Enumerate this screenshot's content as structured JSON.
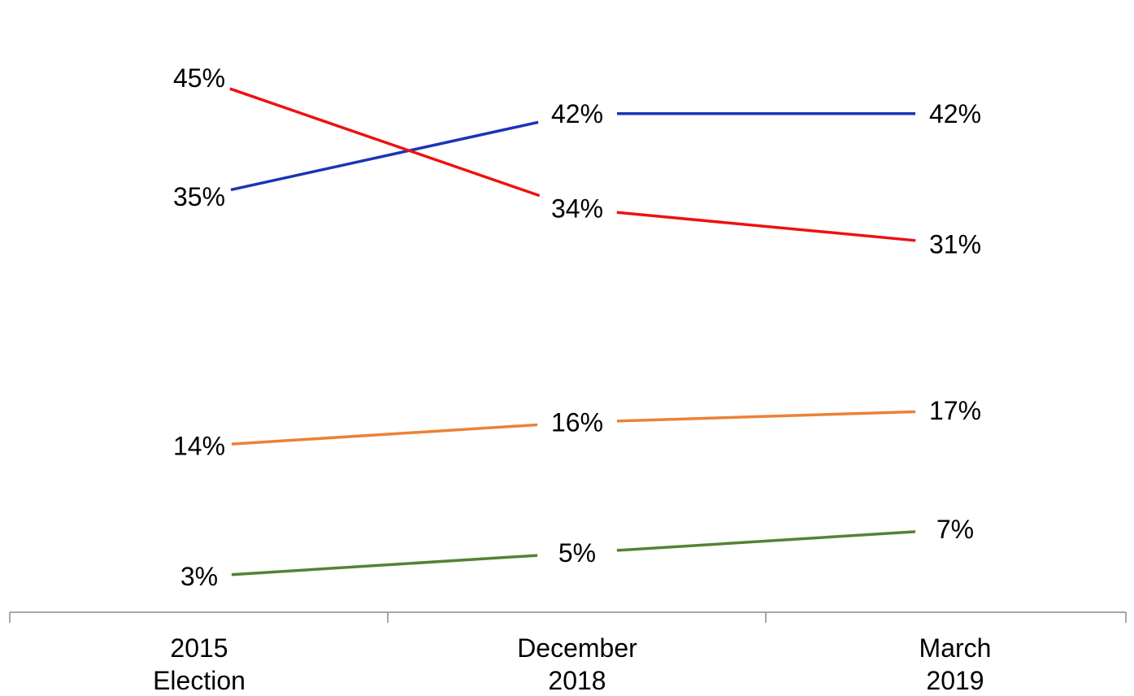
{
  "chart_data": {
    "type": "line",
    "categories": [
      [
        "2015",
        "Election"
      ],
      [
        "December",
        "2018"
      ],
      [
        "March",
        "2019"
      ]
    ],
    "series": [
      {
        "values": [
          35,
          42,
          42
        ],
        "labels": [
          "35%",
          "42%",
          "42%"
        ],
        "color": "#1a35b4"
      },
      {
        "values": [
          45,
          34,
          31
        ],
        "labels": [
          "45%",
          "34%",
          "31%"
        ],
        "color": "#ee1111"
      },
      {
        "values": [
          14,
          16,
          17
        ],
        "labels": [
          "14%",
          "16%",
          "17%"
        ],
        "color": "#ea8236"
      },
      {
        "values": [
          3,
          5,
          7
        ],
        "labels": [
          "3%",
          "5%",
          "7%"
        ],
        "color": "#548235"
      }
    ],
    "value_suffix": "%",
    "ylim": [
      0,
      48
    ],
    "grid": false,
    "legend": "none",
    "axis_color": "#8c8c8c"
  }
}
